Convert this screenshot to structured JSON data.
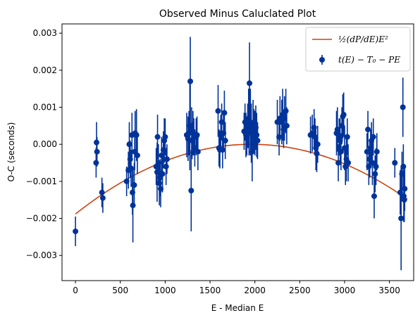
{
  "chart_data": {
    "type": "scatter",
    "title": "Observed Minus Caluclated Plot",
    "xlabel": "E - Median E",
    "ylabel": "O-C (seconds)",
    "xlim": [
      -150,
      3770
    ],
    "ylim": [
      -0.00368,
      0.00325
    ],
    "xticks": [
      0,
      500,
      1000,
      1500,
      2000,
      2500,
      3000,
      3500
    ],
    "yticks": [
      -0.003,
      -0.002,
      -0.001,
      0.0,
      0.001,
      0.002,
      0.003
    ],
    "ytick_labels": [
      "−0.003",
      "−0.002",
      "−0.001",
      "0.000",
      "0.001",
      "0.002",
      "0.003"
    ],
    "grid": false,
    "legend_position": "top-right",
    "colors": {
      "data": "#003399",
      "fit": "#cc4411"
    },
    "fit_model": {
      "formula": "0.5*dPdE*(E-E0)^2 + c",
      "vertex_x": 1960,
      "vertex_y": 0.0,
      "coef": -4.9e-10,
      "x_range": [
        0,
        3700
      ]
    },
    "legend": [
      {
        "label": "½(dP/dE)E²",
        "kind": "line"
      },
      {
        "label": "t(E) − T₀ − PE",
        "kind": "errorbar"
      }
    ],
    "series": [
      {
        "kind": "errorbar",
        "points": [
          [
            0,
            -0.00235,
            0.0004
          ],
          [
            230,
            -0.0005,
            0.0004
          ],
          [
            235,
            5e-05,
            0.00055
          ],
          [
            240,
            -0.0002,
            0.0004
          ],
          [
            295,
            -0.0013,
            0.0004
          ],
          [
            305,
            -0.00145,
            0.0004
          ],
          [
            570,
            -0.001,
            0.0004
          ],
          [
            590,
            -0.0007,
            0.0005
          ],
          [
            600,
            0.0,
            0.0006
          ],
          [
            610,
            -0.0004,
            0.0005
          ],
          [
            620,
            -0.00065,
            0.0005
          ],
          [
            630,
            0.00025,
            0.0006
          ],
          [
            635,
            -0.0013,
            0.0006
          ],
          [
            640,
            -0.00165,
            0.001
          ],
          [
            655,
            -0.0011,
            0.0006
          ],
          [
            660,
            -0.0002,
            0.0005
          ],
          [
            665,
            0.0003,
            0.0006
          ],
          [
            680,
            0.00025,
            0.0007
          ],
          [
            690,
            -0.0003,
            0.0005
          ],
          [
            900,
            -0.0006,
            0.0005
          ],
          [
            910,
            -0.00075,
            0.0008
          ],
          [
            915,
            0.0002,
            0.0006
          ],
          [
            925,
            -0.0005,
            0.0005
          ],
          [
            935,
            -0.00105,
            0.0006
          ],
          [
            945,
            -0.0009,
            0.0005
          ],
          [
            950,
            -0.0012,
            0.0005
          ],
          [
            960,
            -0.0003,
            0.0005
          ],
          [
            970,
            -0.0008,
            0.0005
          ],
          [
            980,
            -0.00015,
            0.0005
          ],
          [
            990,
            0.0001,
            0.0006
          ],
          [
            1000,
            0.0002,
            0.0005
          ],
          [
            1010,
            -0.0006,
            0.0005
          ],
          [
            1020,
            -0.0004,
            0.0004
          ],
          [
            1240,
            0.00025,
            0.0006
          ],
          [
            1255,
            0.00015,
            0.0006
          ],
          [
            1265,
            0.0003,
            0.0006
          ],
          [
            1275,
            0.0005,
            0.0012
          ],
          [
            1280,
            0.0017,
            0.0012
          ],
          [
            1290,
            -0.00125,
            0.0011
          ],
          [
            1295,
            0.0004,
            0.0006
          ],
          [
            1300,
            0.0001,
            0.0005
          ],
          [
            1310,
            0.0003,
            0.0006
          ],
          [
            1320,
            0.0002,
            0.0005
          ],
          [
            1330,
            -0.0001,
            0.0005
          ],
          [
            1345,
            0.0002,
            0.0005
          ],
          [
            1355,
            0.00025,
            0.0005
          ],
          [
            1365,
            -0.0002,
            0.0005
          ],
          [
            1590,
            0.0009,
            0.0007
          ],
          [
            1600,
            -0.0001,
            0.0005
          ],
          [
            1610,
            -0.00015,
            0.0005
          ],
          [
            1620,
            0.0003,
            0.0005
          ],
          [
            1630,
            0.0006,
            0.0005
          ],
          [
            1640,
            -0.00015,
            0.0005
          ],
          [
            1650,
            0.0003,
            0.0005
          ],
          [
            1660,
            0.00085,
            0.0006
          ],
          [
            1670,
            0.0001,
            0.0005
          ],
          [
            1880,
            0.00035,
            0.0005
          ],
          [
            1890,
            0.0006,
            0.0005
          ],
          [
            1900,
            0.00025,
            0.0006
          ],
          [
            1910,
            0.0002,
            0.0005
          ],
          [
            1920,
            0.0005,
            0.0006
          ],
          [
            1930,
            0.0007,
            0.0008
          ],
          [
            1935,
            0.0004,
            0.0007
          ],
          [
            1940,
            0.00165,
            0.0011
          ],
          [
            1950,
            0.0006,
            0.0009
          ],
          [
            1960,
            0.0003,
            0.0008
          ],
          [
            1970,
            -0.0002,
            0.0008
          ],
          [
            1980,
            0.0005,
            0.0007
          ],
          [
            1990,
            0.00035,
            0.0006
          ],
          [
            2000,
            0.0003,
            0.0006
          ],
          [
            2010,
            0.00045,
            0.0006
          ],
          [
            2020,
            0.00025,
            0.0006
          ],
          [
            2030,
            0.0001,
            0.0005
          ],
          [
            2250,
            0.0006,
            0.0006
          ],
          [
            2270,
            0.0002,
            0.0005
          ],
          [
            2280,
            0.0007,
            0.0006
          ],
          [
            2300,
            0.0006,
            0.0006
          ],
          [
            2310,
            0.0008,
            0.0007
          ],
          [
            2320,
            0.0004,
            0.0005
          ],
          [
            2330,
            0.0007,
            0.0006
          ],
          [
            2345,
            0.0009,
            0.0006
          ],
          [
            2355,
            0.0005,
            0.0005
          ],
          [
            2620,
            0.00025,
            0.0005
          ],
          [
            2640,
            0.0003,
            0.0005
          ],
          [
            2660,
            0.00045,
            0.0005
          ],
          [
            2670,
            0.0002,
            0.0005
          ],
          [
            2680,
            -0.0001,
            0.0006
          ],
          [
            2690,
            -0.00025,
            0.0005
          ],
          [
            2700,
            0.0,
            0.0005
          ],
          [
            2910,
            0.0003,
            0.0006
          ],
          [
            2920,
            0.0004,
            0.0006
          ],
          [
            2930,
            -0.0005,
            0.0005
          ],
          [
            2940,
            0.0002,
            0.0005
          ],
          [
            2950,
            0.0001,
            0.0006
          ],
          [
            2960,
            -0.0002,
            0.0005
          ],
          [
            2970,
            0.0005,
            0.0005
          ],
          [
            2980,
            0.00075,
            0.0006
          ],
          [
            2990,
            0.0008,
            0.0006
          ],
          [
            3000,
            -0.0001,
            0.0006
          ],
          [
            3010,
            -0.0006,
            0.0005
          ],
          [
            3020,
            -0.0004,
            0.0006
          ],
          [
            3030,
            0.0002,
            0.0005
          ],
          [
            3040,
            -0.0005,
            0.0005
          ],
          [
            3250,
            -0.0002,
            0.0005
          ],
          [
            3260,
            0.0004,
            0.0005
          ],
          [
            3270,
            -0.0006,
            0.0005
          ],
          [
            3280,
            -0.0004,
            0.0005
          ],
          [
            3290,
            -0.0001,
            0.0005
          ],
          [
            3300,
            0.0001,
            0.0005
          ],
          [
            3310,
            -0.0005,
            0.0006
          ],
          [
            3320,
            0.0002,
            0.0005
          ],
          [
            3330,
            -0.0014,
            0.0006
          ],
          [
            3340,
            -0.0008,
            0.0005
          ],
          [
            3350,
            -0.0006,
            0.0005
          ],
          [
            3360,
            -0.0002,
            0.0005
          ],
          [
            3560,
            -0.0005,
            0.0004
          ],
          [
            3620,
            -0.0013,
            0.0006
          ],
          [
            3630,
            -0.002,
            0.0014
          ],
          [
            3640,
            -0.0008,
            0.0006
          ],
          [
            3650,
            0.001,
            0.0008
          ],
          [
            3655,
            -0.0006,
            0.0006
          ],
          [
            3660,
            -0.0014,
            0.0007
          ],
          [
            3665,
            -0.0015,
            0.0006
          ],
          [
            3670,
            -0.0012,
            0.0006
          ]
        ]
      }
    ]
  }
}
